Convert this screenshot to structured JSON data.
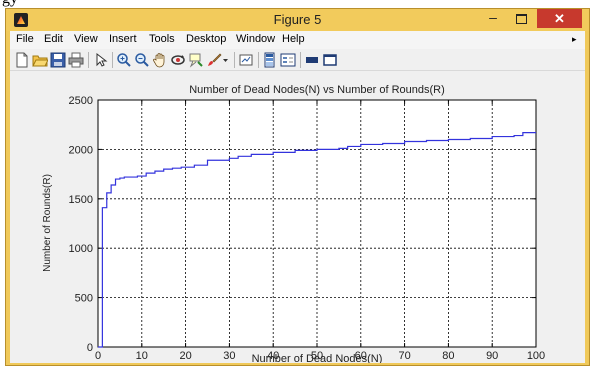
{
  "page": {
    "top_fragment": "gy"
  },
  "window": {
    "title": "Figure 5",
    "controls": {
      "minimize": "–",
      "close": "✕"
    }
  },
  "menu": {
    "items": [
      "File",
      "Edit",
      "View",
      "Insert",
      "Tools",
      "Desktop",
      "Window",
      "Help"
    ],
    "overflow_arrow": "▸"
  },
  "toolbar": {
    "icons": [
      "new-figure-icon",
      "open-file-icon",
      "save-icon",
      "print-icon",
      "arrow-pointer-icon",
      "zoom-in-icon",
      "zoom-out-icon",
      "pan-hand-icon",
      "rotate-3d-icon",
      "data-cursor-icon",
      "brush-icon",
      "brush-dropdown-icon",
      "link-plot-icon",
      "colorbar-icon",
      "legend-icon",
      "hide-plot-tools-icon",
      "show-plot-tools-icon"
    ]
  },
  "colors": {
    "line": "#3333dd",
    "plot_bg": "#ffffff",
    "figure_bg": "#f0f0f0",
    "titlebar": "#f2cb5c",
    "close_button": "#c7392d"
  },
  "chart_data": {
    "type": "line",
    "title": "Number of Dead Nodes(N) vs Number of Rounds(R)",
    "xlabel": "Number of Dead Nodes(N)",
    "ylabel": "Number of Rounds(R)",
    "xlim": [
      0,
      100
    ],
    "ylim": [
      0,
      2500
    ],
    "xticks": [
      0,
      10,
      20,
      30,
      40,
      50,
      60,
      70,
      80,
      90,
      100
    ],
    "yticks": [
      0,
      500,
      1000,
      1500,
      2000,
      2500
    ],
    "grid": true,
    "series": [
      {
        "step": "post",
        "x": [
          0,
          1,
          2,
          3,
          4,
          5,
          6,
          9,
          11,
          13,
          15,
          17,
          19,
          22,
          25,
          30,
          32,
          35,
          40,
          45,
          50,
          55,
          57,
          60,
          65,
          70,
          75,
          80,
          85,
          90,
          95,
          97,
          100
        ],
        "y": [
          0,
          1410,
          1560,
          1640,
          1700,
          1710,
          1720,
          1730,
          1760,
          1780,
          1800,
          1810,
          1820,
          1840,
          1890,
          1910,
          1930,
          1950,
          1970,
          1990,
          2000,
          2010,
          2030,
          2050,
          2060,
          2080,
          2090,
          2100,
          2110,
          2130,
          2140,
          2170,
          2170
        ]
      }
    ]
  }
}
